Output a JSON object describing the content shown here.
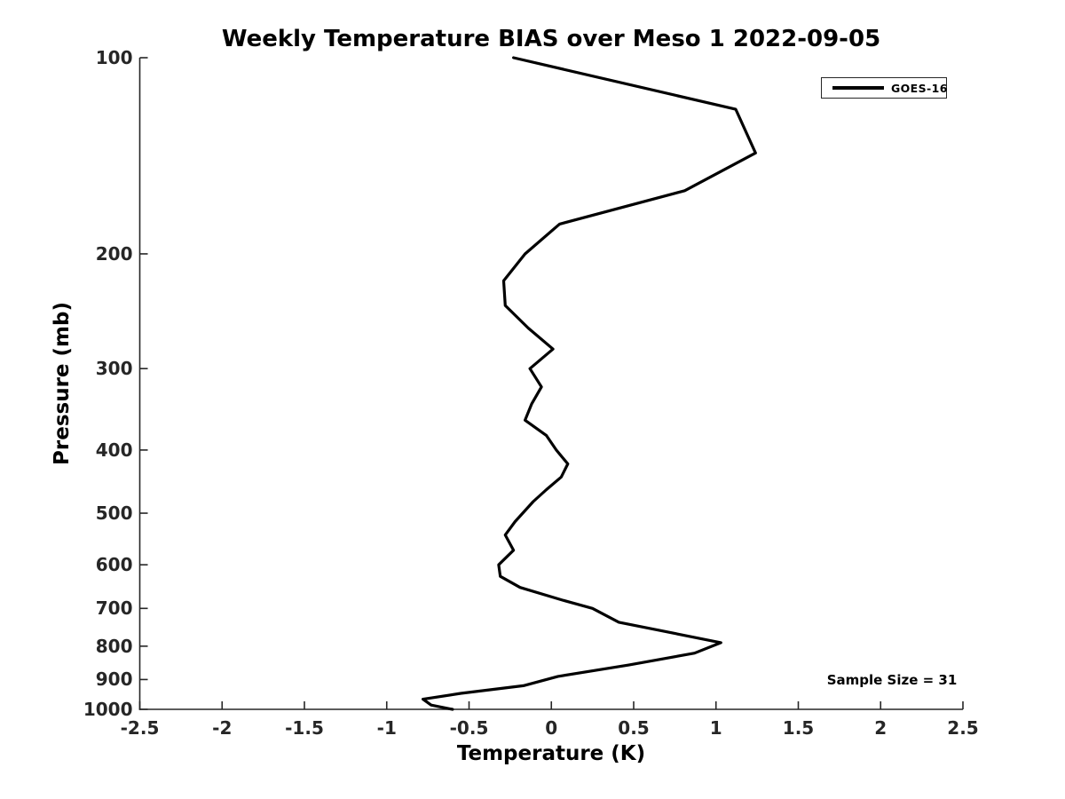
{
  "title": "Weekly Temperature BIAS over Meso 1 2022-09-05",
  "x_axis_label": "Temperature (K)",
  "y_axis_label": "Pressure (mb)",
  "legend": {
    "entry_label": "GOES-16"
  },
  "annotation": {
    "sample_size_text": "Sample Size = 31"
  },
  "colors": {
    "line": "#000000",
    "axis": "#262626",
    "background": "#ffffff",
    "text": "#000000"
  },
  "chart_data": {
    "type": "line",
    "title": "Weekly Temperature BIAS over Meso 1 2022-09-05",
    "xlabel": "Temperature (K)",
    "ylabel": "Pressure (mb)",
    "xlim": [
      -2.5,
      2.5
    ],
    "ylim": [
      100,
      1000
    ],
    "y_scale": "log",
    "y_axis_reversed": true,
    "grid": false,
    "x_ticks": [
      -2.5,
      -2,
      -1.5,
      -1,
      -0.5,
      0,
      0.5,
      1,
      1.5,
      2,
      2.5
    ],
    "y_ticks": [
      100,
      200,
      300,
      400,
      500,
      600,
      700,
      800,
      900,
      1000
    ],
    "legend_position": "upper right",
    "annotations": [
      {
        "text": "Sample Size = 31",
        "x_k": 2.07,
        "pressure_mb": 905
      }
    ],
    "series": [
      {
        "name": "GOES-16",
        "color": "#000000",
        "line_width": 3.2,
        "points": [
          {
            "pressure_mb": 100,
            "bias_k": -0.23
          },
          {
            "pressure_mb": 120,
            "bias_k": 1.12
          },
          {
            "pressure_mb": 140,
            "bias_k": 1.24
          },
          {
            "pressure_mb": 160,
            "bias_k": 0.81
          },
          {
            "pressure_mb": 180,
            "bias_k": 0.05
          },
          {
            "pressure_mb": 200,
            "bias_k": -0.16
          },
          {
            "pressure_mb": 220,
            "bias_k": -0.29
          },
          {
            "pressure_mb": 240,
            "bias_k": -0.28
          },
          {
            "pressure_mb": 260,
            "bias_k": -0.14
          },
          {
            "pressure_mb": 280,
            "bias_k": 0.01
          },
          {
            "pressure_mb": 300,
            "bias_k": -0.13
          },
          {
            "pressure_mb": 320,
            "bias_k": -0.06
          },
          {
            "pressure_mb": 340,
            "bias_k": -0.12
          },
          {
            "pressure_mb": 360,
            "bias_k": -0.16
          },
          {
            "pressure_mb": 380,
            "bias_k": -0.03
          },
          {
            "pressure_mb": 400,
            "bias_k": 0.03
          },
          {
            "pressure_mb": 420,
            "bias_k": 0.1
          },
          {
            "pressure_mb": 440,
            "bias_k": 0.06
          },
          {
            "pressure_mb": 460,
            "bias_k": -0.03
          },
          {
            "pressure_mb": 480,
            "bias_k": -0.11
          },
          {
            "pressure_mb": 515,
            "bias_k": -0.22
          },
          {
            "pressure_mb": 540,
            "bias_k": -0.28
          },
          {
            "pressure_mb": 570,
            "bias_k": -0.23
          },
          {
            "pressure_mb": 600,
            "bias_k": -0.32
          },
          {
            "pressure_mb": 625,
            "bias_k": -0.31
          },
          {
            "pressure_mb": 650,
            "bias_k": -0.19
          },
          {
            "pressure_mb": 680,
            "bias_k": 0.07
          },
          {
            "pressure_mb": 700,
            "bias_k": 0.25
          },
          {
            "pressure_mb": 735,
            "bias_k": 0.41
          },
          {
            "pressure_mb": 790,
            "bias_k": 1.03
          },
          {
            "pressure_mb": 820,
            "bias_k": 0.87
          },
          {
            "pressure_mb": 855,
            "bias_k": 0.47
          },
          {
            "pressure_mb": 890,
            "bias_k": 0.04
          },
          {
            "pressure_mb": 920,
            "bias_k": -0.17
          },
          {
            "pressure_mb": 945,
            "bias_k": -0.55
          },
          {
            "pressure_mb": 965,
            "bias_k": -0.78
          },
          {
            "pressure_mb": 985,
            "bias_k": -0.73
          },
          {
            "pressure_mb": 1000,
            "bias_k": -0.6
          }
        ]
      }
    ]
  }
}
